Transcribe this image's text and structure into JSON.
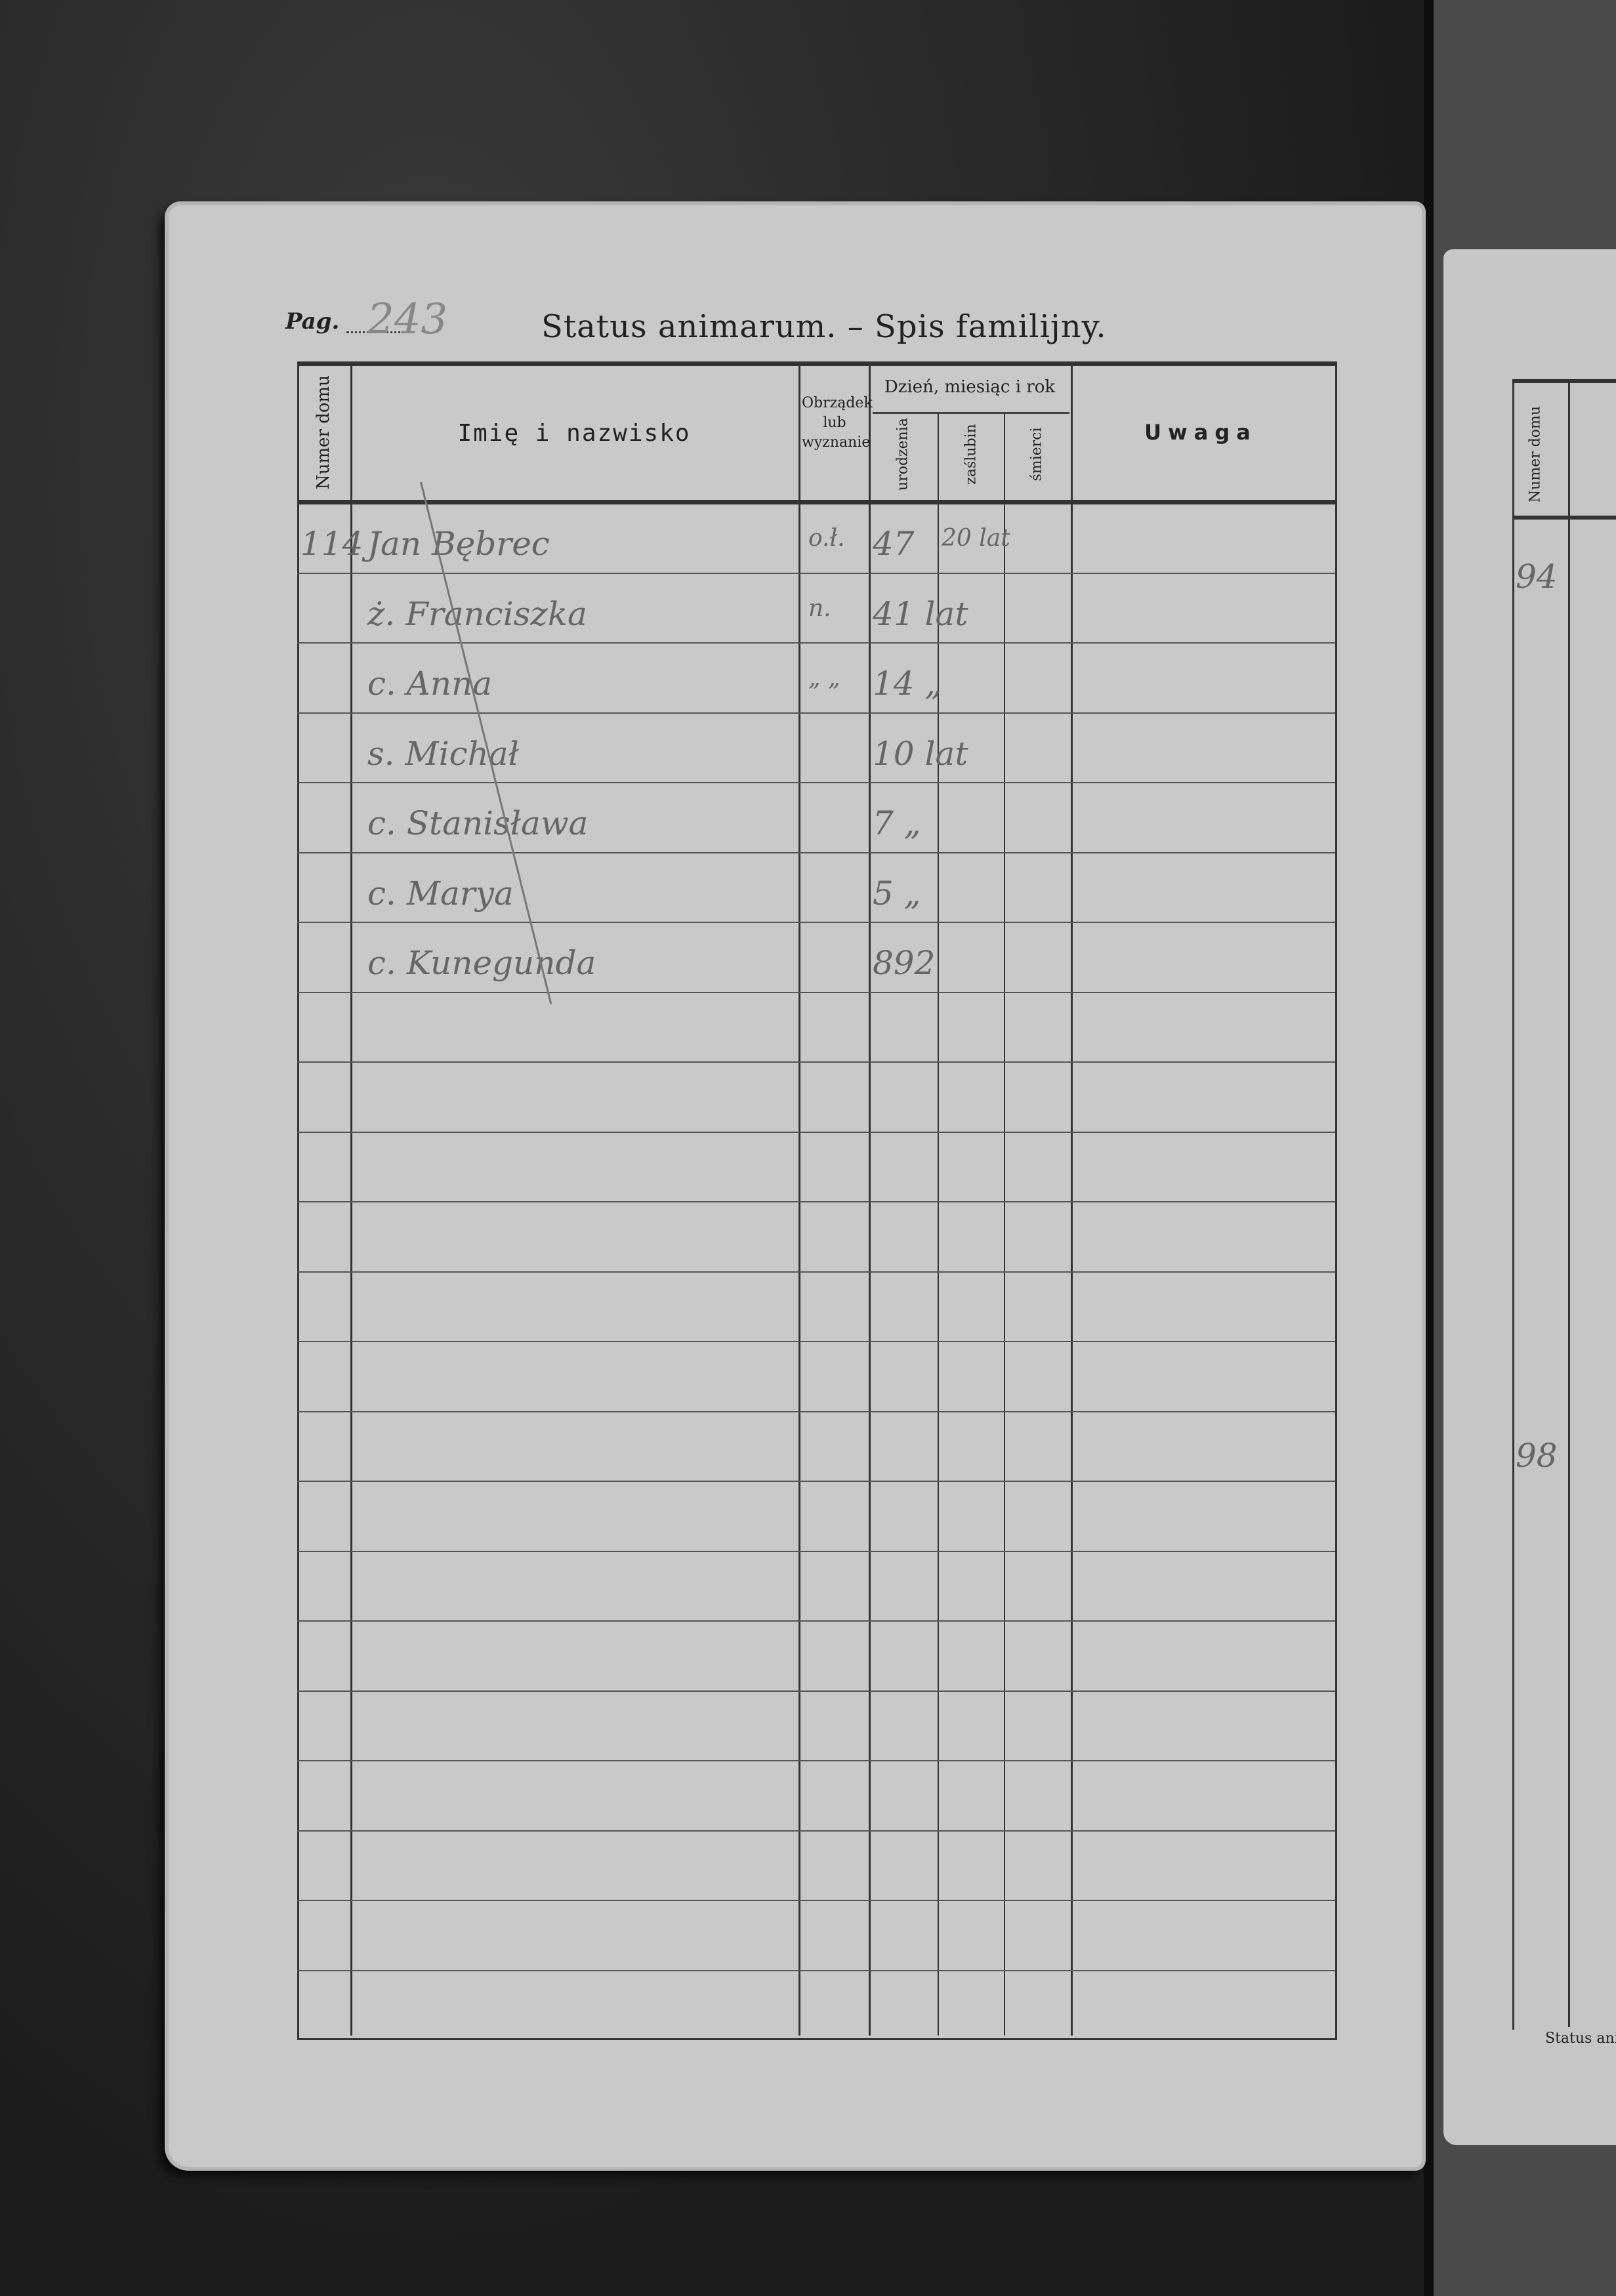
{
  "page": {
    "pag_label": "Pag.",
    "page_number": "243",
    "title": "Status animarum. – Spis familijny."
  },
  "table": {
    "headers": {
      "house_number": "Numer domu",
      "name": "Imię i nazwisko",
      "rite": "Obrządek lub wyznanie",
      "date_group": "Dzień, miesiąc i rok",
      "birth": "urodzenia",
      "marriage": "zaślubin",
      "death": "śmierci",
      "remarks": "Uwaga"
    },
    "rows": [
      {
        "house": "114",
        "name": "Jan Bębrec",
        "rite": "o.ł.",
        "birth": "47",
        "marriage": "20 lat"
      },
      {
        "house": "",
        "name": "ż. Franciszka",
        "rite": "n.",
        "birth": "41 lat",
        "marriage": ""
      },
      {
        "house": "",
        "name": "c. Anna",
        "rite": "„ „",
        "birth": "14 „",
        "marriage": ""
      },
      {
        "house": "",
        "name": "s. Michał",
        "rite": "",
        "birth": "10 lat",
        "marriage": ""
      },
      {
        "house": "",
        "name": "c. Stanisława",
        "rite": "",
        "birth": "7 „",
        "marriage": ""
      },
      {
        "house": "",
        "name": "c. Marya",
        "rite": "",
        "birth": "5 „",
        "marriage": ""
      },
      {
        "house": "",
        "name": "c. Kunegunda",
        "rite": "",
        "birth": "892",
        "marriage": ""
      }
    ]
  },
  "facing_page": {
    "header": "Numer domu",
    "entries": [
      "94",
      "98"
    ],
    "footer": "Status anim"
  }
}
